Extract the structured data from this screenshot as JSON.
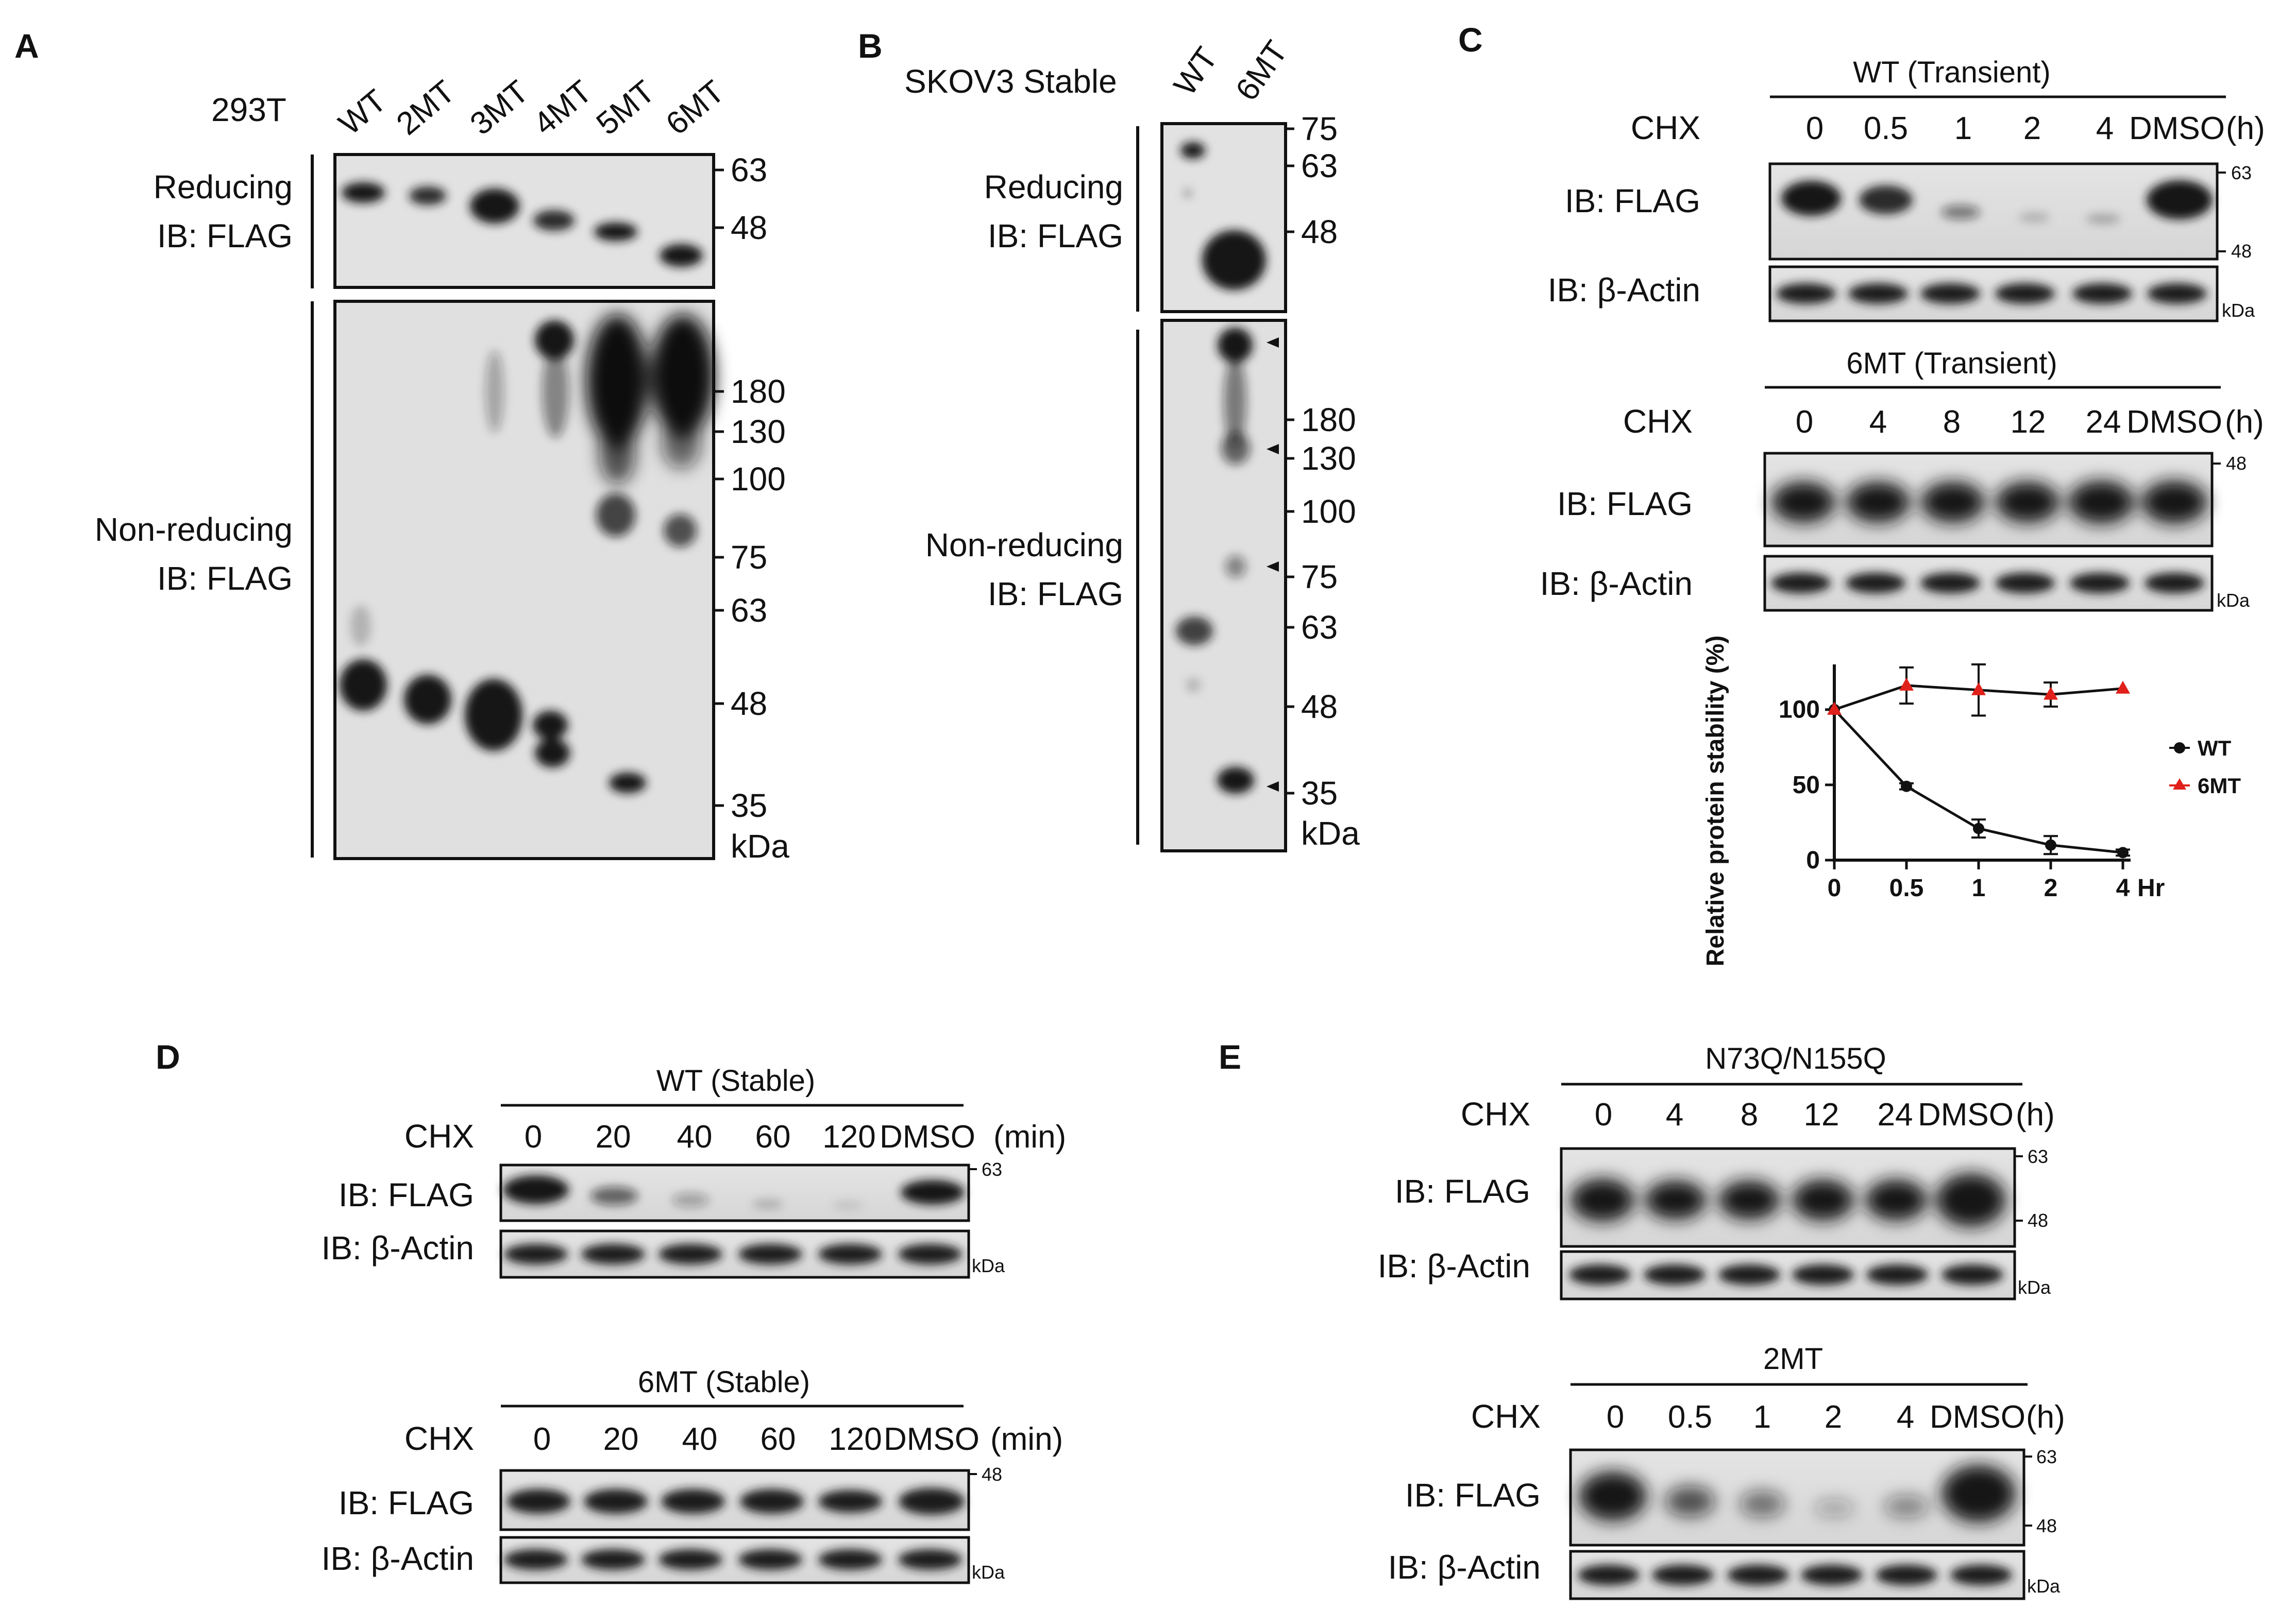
{
  "panels": {
    "A": {
      "letter": "A",
      "cell_line": "293T",
      "lanes": [
        "WT",
        "2MT",
        "3MT",
        "4MT",
        "5MT",
        "6MT"
      ],
      "reducing_label": [
        "Reducing",
        "IB: FLAG"
      ],
      "nonreducing_label": [
        "Non-reducing",
        "IB: FLAG"
      ],
      "mw_reducing": [
        "63",
        "48"
      ],
      "mw_nonreducing": [
        "180",
        "130",
        "100",
        "75",
        "63",
        "48",
        "35"
      ],
      "unit": "kDa"
    },
    "B": {
      "letter": "B",
      "cell_line": "SKOV3 Stable",
      "lanes": [
        "WT",
        "6MT"
      ],
      "reducing_label": [
        "Reducing",
        "IB: FLAG"
      ],
      "nonreducing_label": [
        "Non-reducing",
        "IB: FLAG"
      ],
      "mw_reducing": [
        "75",
        "63",
        "48"
      ],
      "mw_nonreducing": [
        "180",
        "130",
        "100",
        "75",
        "63",
        "48",
        "35"
      ],
      "unit": "kDa"
    },
    "C": {
      "letter": "C",
      "blot1": {
        "title": "WT (Transient)",
        "treatment": "CHX",
        "timepoints": [
          "0",
          "0.5",
          "1",
          "2",
          "4",
          "DMSO"
        ],
        "unit_label": "(h)",
        "rows": [
          "IB: FLAG",
          "IB: β-Actin"
        ],
        "mw": [
          "63",
          "48"
        ],
        "kda": "kDa"
      },
      "blot2": {
        "title": "6MT (Transient)",
        "treatment": "CHX",
        "timepoints": [
          "0",
          "4",
          "8",
          "12",
          "24",
          "DMSO"
        ],
        "unit_label": "(h)",
        "rows": [
          "IB: FLAG",
          "IB: β-Actin"
        ],
        "mw": [
          "48"
        ],
        "kda": "kDa"
      }
    },
    "D": {
      "letter": "D",
      "blot1": {
        "title": "WT (Stable)",
        "treatment": "CHX",
        "timepoints": [
          "0",
          "20",
          "40",
          "60",
          "120",
          "DMSO"
        ],
        "unit_label": "(min)",
        "rows": [
          "IB: FLAG",
          "IB: β-Actin"
        ],
        "mw": [
          "63"
        ],
        "kda": "kDa"
      },
      "blot2": {
        "title": "6MT (Stable)",
        "treatment": "CHX",
        "timepoints": [
          "0",
          "20",
          "40",
          "60",
          "120",
          "DMSO"
        ],
        "unit_label": "(min)",
        "rows": [
          "IB: FLAG",
          "IB: β-Actin"
        ],
        "mw": [
          "48"
        ],
        "kda": "kDa"
      }
    },
    "E": {
      "letter": "E",
      "blot1": {
        "title": "N73Q/N155Q",
        "treatment": "CHX",
        "timepoints": [
          "0",
          "4",
          "8",
          "12",
          "24",
          "DMSO"
        ],
        "unit_label": "(h)",
        "rows": [
          "IB: FLAG",
          "IB: β-Actin"
        ],
        "mw": [
          "63",
          "48"
        ],
        "kda": "kDa"
      },
      "blot2": {
        "title": "2MT",
        "treatment": "CHX",
        "timepoints": [
          "0",
          "0.5",
          "1",
          "2",
          "4",
          "DMSO"
        ],
        "unit_label": "(h)",
        "rows": [
          "IB: FLAG",
          "IB: β-Actin"
        ],
        "mw": [
          "63",
          "48"
        ],
        "kda": "kDa"
      }
    }
  },
  "chart_data": {
    "type": "line",
    "ylabel": "Relative protein stability (%)",
    "x": [
      "0",
      "0.5",
      "1",
      "2",
      "4"
    ],
    "x_unit": "Hr",
    "yticks": [
      "0",
      "50",
      "100"
    ],
    "ylim": [
      0,
      130
    ],
    "grid": false,
    "legend": "right",
    "series": [
      {
        "name": "WT",
        "values": [
          100,
          49,
          21,
          10,
          5
        ],
        "errors": [
          0,
          2,
          6,
          6,
          2
        ],
        "color": "#111111",
        "marker": "circle"
      },
      {
        "name": "6MT",
        "values": [
          100,
          116,
          113,
          110,
          114
        ],
        "errors": [
          0,
          12,
          17,
          8,
          0
        ],
        "color": "#e0201a",
        "marker": "triangle"
      }
    ]
  }
}
